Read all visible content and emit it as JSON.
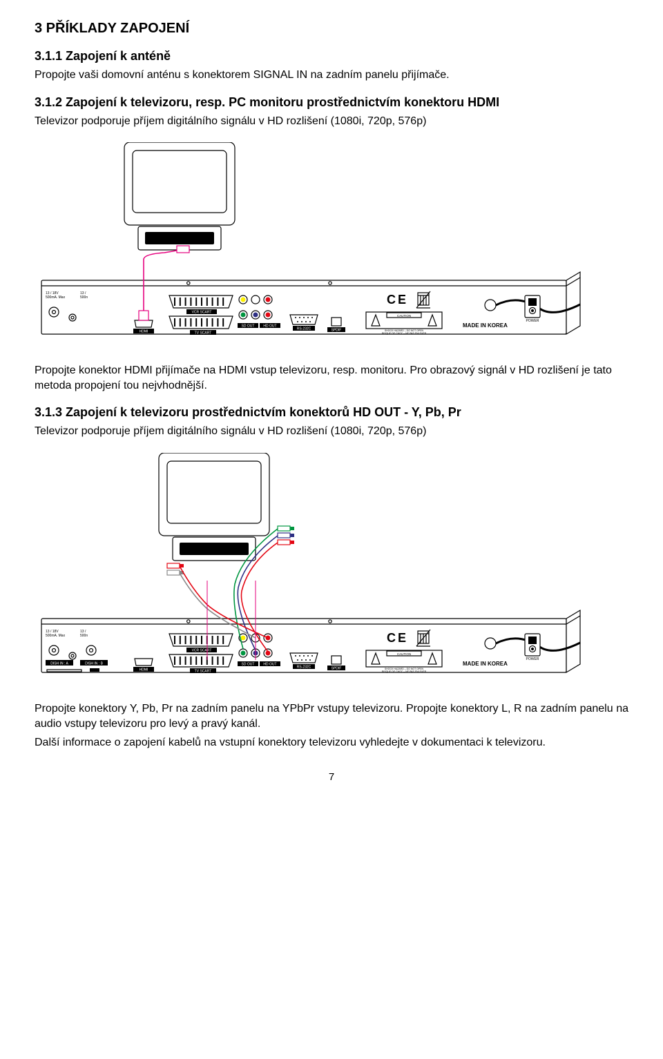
{
  "section3": {
    "title": "3   PŘÍKLADY ZAPOJENÍ",
    "s311": {
      "title": "3.1.1   Zapojení k  anténě",
      "body": "Propojte vaši domovní anténu s konektorem SIGNAL IN na zadním panelu přijímače."
    },
    "s312": {
      "title": "3.1.2   Zapojení k televizoru, resp. PC monitoru prostřednictvím konektoru HDMI",
      "body": "Televizor podporuje příjem digitálního signálu v HD rozlišení (1080i, 720p, 576p)",
      "after_img": "Propojte konektor HDMI  přijímače na HDMI vstup televizoru, resp. monitoru. Pro obrazový signál v HD rozlišení je tato metoda propojení tou nejvhodnější."
    },
    "s313": {
      "title": "3.1.3   Zapojení k televizoru prostřednictvím konektorů HD OUT - Y, Pb, Pr",
      "body": "Televizor podporuje příjem digitálního signálu v HD rozlišení (1080i, 720p, 576p)",
      "after_img1": "Propojte konektory Y, Pb, Pr na zadním panelu na YPbPr vstupy televizoru. Propojte konektory L, R na zadním panelu na audio vstupy televizoru pro levý a pravý kanál.",
      "after_img2": "Další informace o zapojení kabelů na vstupní konektory televizoru vyhledejte v dokumentaci k televizoru."
    }
  },
  "diagram": {
    "colors": {
      "stroke": "#000000",
      "fill_receiver": "#ffffff",
      "tv_screen": "#ffffff",
      "cable_hdmi": "#e6007e",
      "cable_red": "#e30613",
      "cable_green": "#009640",
      "cable_blue": "#2d2e83",
      "cable_white": "#ffffff",
      "cable_audio_red": "#e30613",
      "ce_text": "#000000",
      "label_bg": "#000000",
      "label_fg": "#ffffff",
      "rca_yellow": "#fff200",
      "rca_white": "#ffffff",
      "rca_red": "#e30613",
      "rca_green": "#009640",
      "rca_blue": "#2d2e83"
    },
    "labels": {
      "vcr_scart": "VCR SCART",
      "tv_scart": "TV SCART",
      "sd_out": "SD OUT",
      "hd_out": "HD OUT",
      "rs232": "RS-232C",
      "spdif": "SPDIF",
      "hdmi": "HDMI",
      "power": "POWER",
      "made": "MADE IN KOREA",
      "info1": "13 / 18V",
      "info2": "500mA. Max",
      "dish_a": "DISH IN : A",
      "dish_b": "DISH IN : B",
      "caution1": "CAUTION",
      "caution2": "SHOCK HAZARD – DO NOT OPEN",
      "caution3": "RISQUE DE CHOC – NE PAS ENLEVER"
    },
    "stroke_width": 1.2,
    "cable_width": 1.6
  },
  "page_number": "7"
}
